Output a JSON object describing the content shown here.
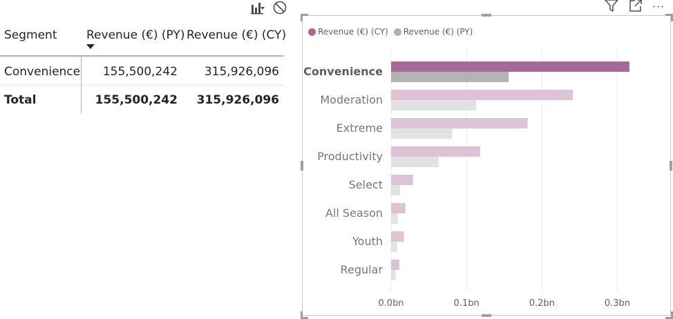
{
  "table": {
    "columns": [
      {
        "label": "Segment",
        "sorted": false
      },
      {
        "label": "Revenue (€) (PY)",
        "sorted": true
      },
      {
        "label": "Revenue (€) (CY)",
        "sorted": false
      }
    ],
    "rows": [
      {
        "segment": "Convenience",
        "py": "155,500,242",
        "cy": "315,926,096"
      }
    ],
    "total": {
      "label": "Total",
      "py": "155,500,242",
      "cy": "315,926,096"
    }
  },
  "toolbars": {
    "table_icons": [
      "drill-chart-icon",
      "no-filter-icon"
    ],
    "visual_icons": [
      "filter-icon",
      "focus-mode-icon",
      "more-options-icon"
    ],
    "more_glyph": "···"
  },
  "chart_data": {
    "type": "bar",
    "orientation": "horizontal",
    "legend_position": "top-left",
    "categories": [
      "Convenience",
      "Moderation",
      "Extreme",
      "Productivity",
      "Select",
      "All Season",
      "Youth",
      "Regular"
    ],
    "highlighted_category": "Convenience",
    "series": [
      {
        "name": "Revenue (€) (CY)",
        "color": "#a66999",
        "color_faded": "#dcc3d6",
        "values": [
          0.316,
          0.241,
          0.181,
          0.118,
          0.029,
          0.019,
          0.017,
          0.011
        ]
      },
      {
        "name": "Revenue (€) (PY)",
        "color": "#b3b3b3",
        "color_faded": "#e2e2e2",
        "values": [
          0.156,
          0.113,
          0.081,
          0.063,
          0.012,
          0.009,
          0.008,
          0.006
        ]
      }
    ],
    "xlim": [
      0,
      0.35
    ],
    "xticks": [
      0.0,
      0.1,
      0.2,
      0.3
    ],
    "xtick_labels": [
      "0.0bn",
      "0.1bn",
      "0.2bn",
      "0.3bn"
    ],
    "grid": true
  }
}
